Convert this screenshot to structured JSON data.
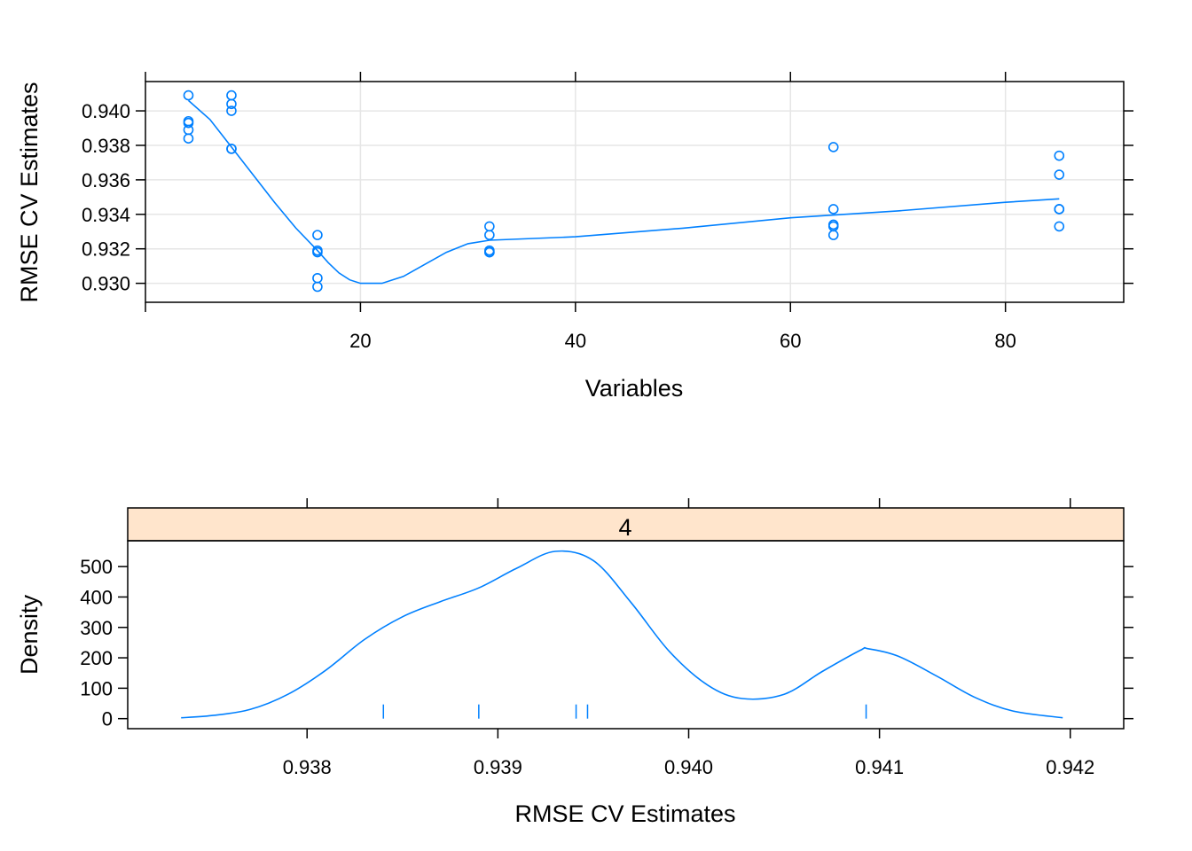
{
  "chart_data": [
    {
      "type": "scatter",
      "xlabel": "Variables",
      "ylabel": "RMSE CV Estimates",
      "xlim": [
        0,
        91
      ],
      "ylim": [
        0.9289,
        0.9417
      ],
      "xticks": [
        20,
        40,
        60,
        80
      ],
      "xtick_labels": [
        "20",
        "40",
        "60",
        "80"
      ],
      "yticks": [
        0.93,
        0.932,
        0.934,
        0.936,
        0.938,
        0.94
      ],
      "ytick_labels": [
        "0.930",
        "0.932",
        "0.934",
        "0.936",
        "0.938",
        "0.940"
      ],
      "grid": true,
      "color": "#0080FF",
      "points": [
        {
          "x": 4,
          "y": 0.9409
        },
        {
          "x": 4,
          "y": 0.9394
        },
        {
          "x": 4,
          "y": 0.9393
        },
        {
          "x": 4,
          "y": 0.9389
        },
        {
          "x": 4,
          "y": 0.9384
        },
        {
          "x": 8,
          "y": 0.9409
        },
        {
          "x": 8,
          "y": 0.9404
        },
        {
          "x": 8,
          "y": 0.94
        },
        {
          "x": 8,
          "y": 0.9378
        },
        {
          "x": 8,
          "y": 0.9378
        },
        {
          "x": 16,
          "y": 0.9328
        },
        {
          "x": 16,
          "y": 0.9319
        },
        {
          "x": 16,
          "y": 0.9318
        },
        {
          "x": 16,
          "y": 0.9303
        },
        {
          "x": 16,
          "y": 0.9298
        },
        {
          "x": 32,
          "y": 0.9333
        },
        {
          "x": 32,
          "y": 0.9328
        },
        {
          "x": 32,
          "y": 0.9319
        },
        {
          "x": 32,
          "y": 0.9318
        },
        {
          "x": 32,
          "y": 0.9318
        },
        {
          "x": 64,
          "y": 0.9379
        },
        {
          "x": 64,
          "y": 0.9343
        },
        {
          "x": 64,
          "y": 0.9334
        },
        {
          "x": 64,
          "y": 0.9333
        },
        {
          "x": 64,
          "y": 0.9328
        },
        {
          "x": 85,
          "y": 0.9374
        },
        {
          "x": 85,
          "y": 0.9363
        },
        {
          "x": 85,
          "y": 0.9343
        },
        {
          "x": 85,
          "y": 0.9343
        },
        {
          "x": 85,
          "y": 0.9333
        }
      ],
      "smooth": {
        "x": [
          4,
          6,
          8,
          10,
          12,
          14,
          16,
          17,
          18,
          19,
          20,
          21,
          22,
          24,
          26,
          28,
          30,
          32,
          40,
          50,
          60,
          70,
          80,
          85
        ],
        "y": [
          0.9406,
          0.9395,
          0.9379,
          0.9363,
          0.9347,
          0.9332,
          0.9319,
          0.9312,
          0.9306,
          0.9302,
          0.93,
          0.93,
          0.93,
          0.9304,
          0.9311,
          0.9318,
          0.9323,
          0.9325,
          0.9327,
          0.9332,
          0.9338,
          0.9342,
          0.9347,
          0.9349
        ]
      }
    },
    {
      "type": "area",
      "strip_label": "4",
      "xlabel": "RMSE CV Estimates",
      "ylabel": "Density",
      "xlim": [
        0.93706,
        0.94228
      ],
      "ylim": [
        -33,
        585
      ],
      "xticks": [
        0.938,
        0.939,
        0.94,
        0.941,
        0.942
      ],
      "xtick_labels": [
        "0.938",
        "0.939",
        "0.940",
        "0.941",
        "0.942"
      ],
      "yticks": [
        0,
        100,
        200,
        300,
        400,
        500
      ],
      "ytick_labels": [
        "0",
        "100",
        "200",
        "300",
        "400",
        "500"
      ],
      "color": "#0080FF",
      "strip_color": "#FFE5CC",
      "density": {
        "x": [
          0.93734,
          0.9375,
          0.9377,
          0.9379,
          0.9381,
          0.9383,
          0.9385,
          0.9387,
          0.9389,
          0.9391,
          0.9393,
          0.9395,
          0.9397,
          0.9399,
          0.9401,
          0.94028,
          0.9405,
          0.9407,
          0.9409,
          0.94094,
          0.9411,
          0.9413,
          0.9415,
          0.9417,
          0.94196
        ],
        "y": [
          3,
          10,
          30,
          80,
          160,
          260,
          335,
          385,
          430,
          495,
          550,
          520,
          380,
          220,
          110,
          66,
          80,
          155,
          225,
          230,
          205,
          140,
          70,
          25,
          3
        ]
      },
      "rug": [
        0.9384,
        0.9389,
        0.93941,
        0.93947,
        0.94093
      ]
    }
  ]
}
